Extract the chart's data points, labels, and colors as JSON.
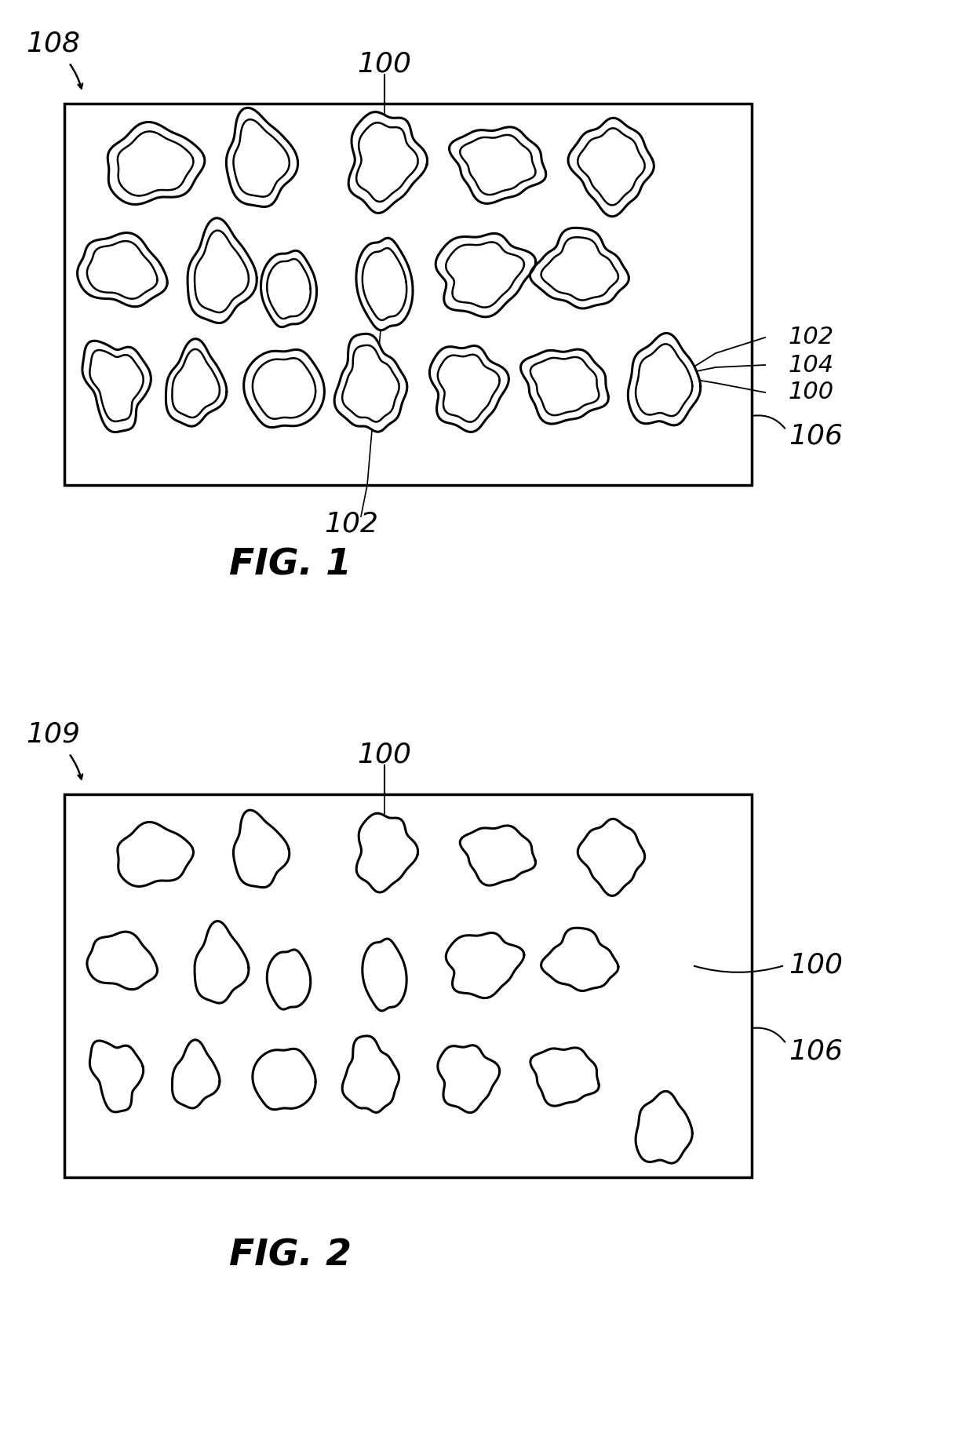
{
  "fig1_label": "FIG. 1",
  "fig2_label": "FIG. 2",
  "label_108": "108",
  "label_109": "109",
  "label_100": "100",
  "label_102": "102",
  "label_104": "104",
  "label_106": "106",
  "bg_color": "#ffffff"
}
